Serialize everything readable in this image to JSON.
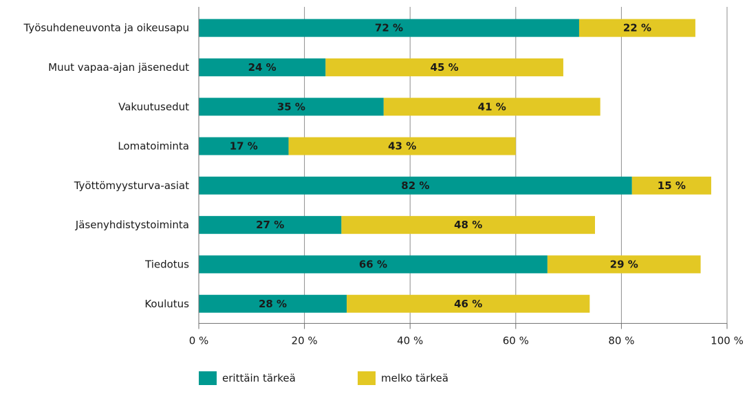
{
  "chart_data": {
    "type": "bar",
    "orientation": "horizontal",
    "stacked": true,
    "categories": [
      "Työsuhdeneuvonta ja oikeusapu",
      "Muut vapaa-ajan jäsenedut",
      "Vakuutusedut",
      "Lomatoiminta",
      "Työttömyysturva-asiat",
      "Jäsenyhdistystoiminta",
      "Tiedotus",
      "Koulutus"
    ],
    "series": [
      {
        "name": "erittäin tärkeä",
        "color": "#009990",
        "values": [
          72,
          24,
          35,
          17,
          82,
          27,
          66,
          28
        ]
      },
      {
        "name": "melko tärkeä",
        "color": "#e3c824",
        "values": [
          22,
          45,
          41,
          43,
          15,
          48,
          29,
          46
        ]
      }
    ],
    "data_labels": [
      [
        "72 %",
        "24 %",
        "35 %",
        "17 %",
        "82 %",
        "27 %",
        "66 %",
        "28 %"
      ],
      [
        "22 %",
        "45 %",
        "41 %",
        "43 %",
        "15 %",
        "48 %",
        "29 %",
        "46 %"
      ]
    ],
    "xlim": [
      0,
      100
    ],
    "xticks": [
      0,
      20,
      40,
      60,
      80,
      100
    ],
    "xtick_labels": [
      "0 %",
      "20 %",
      "40 %",
      "60 %",
      "80 %",
      "100 %"
    ],
    "grid": true,
    "legend_position": "bottom-left"
  }
}
